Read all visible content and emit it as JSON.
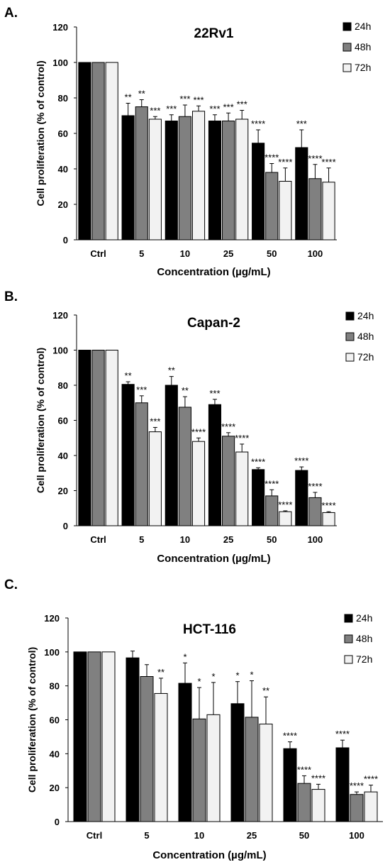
{
  "chart_data": [
    {
      "type": "bar",
      "panel_label": "A.",
      "title": "22Rv1",
      "xlabel": "Concentration (µg/mL)",
      "ylabel": "Cell proliferation (% of control)",
      "ylim": [
        0,
        120
      ],
      "yticks": [
        0,
        20,
        40,
        60,
        80,
        100,
        120
      ],
      "grid": false,
      "legend_position": "top-right",
      "categories": [
        "Ctrl",
        "5",
        "10",
        "25",
        "50",
        "100"
      ],
      "series": [
        {
          "name": "24h",
          "color": "#000000",
          "values": [
            100,
            70,
            67,
            67,
            54.5,
            52
          ],
          "errors": [
            0,
            7,
            3.5,
            3.5,
            7.5,
            10
          ],
          "sig": [
            "",
            "**",
            "***",
            "***",
            "****",
            "***"
          ]
        },
        {
          "name": "48h",
          "color": "#808080",
          "values": [
            100,
            75,
            69.5,
            67,
            38,
            34.5
          ],
          "errors": [
            0,
            4,
            6.5,
            4.5,
            5,
            8
          ],
          "sig": [
            "",
            "**",
            "***",
            "***",
            "****",
            "****"
          ]
        },
        {
          "name": "72h",
          "color": "#f2f2f2",
          "values": [
            100,
            68,
            72.5,
            68,
            33,
            32.5
          ],
          "errors": [
            0,
            1.5,
            3,
            5,
            7.5,
            8
          ],
          "sig": [
            "",
            "***",
            "***",
            "***",
            "****",
            "****"
          ]
        }
      ]
    },
    {
      "type": "bar",
      "panel_label": "B.",
      "title": "Capan-2",
      "xlabel": "Concentration (µg/mL)",
      "ylabel": "Cell proliferation (% of control)",
      "ylim": [
        0,
        120
      ],
      "yticks": [
        0,
        20,
        40,
        60,
        80,
        100,
        120
      ],
      "grid": false,
      "legend_position": "top-right",
      "categories": [
        "Ctrl",
        "5",
        "10",
        "25",
        "50",
        "100"
      ],
      "series": [
        {
          "name": "24h",
          "color": "#000000",
          "values": [
            100,
            80.5,
            80,
            69,
            32,
            31.5
          ],
          "errors": [
            0,
            1.5,
            5,
            3,
            1,
            2
          ],
          "sig": [
            "",
            "**",
            "**",
            "***",
            "****",
            "****"
          ]
        },
        {
          "name": "48h",
          "color": "#808080",
          "values": [
            100,
            70,
            67.5,
            51,
            17,
            16
          ],
          "errors": [
            0,
            4,
            6,
            2,
            3.5,
            3
          ],
          "sig": [
            "",
            "***",
            "**",
            "****",
            "****",
            "****"
          ]
        },
        {
          "name": "72h",
          "color": "#f2f2f2",
          "values": [
            100,
            53.5,
            48,
            42,
            8,
            7.5
          ],
          "errors": [
            0,
            2.5,
            2,
            4.5,
            0.5,
            0.5
          ],
          "sig": [
            "",
            "***",
            "****",
            "****",
            "****",
            "****"
          ]
        }
      ]
    },
    {
      "type": "bar",
      "panel_label": "C.",
      "title": "HCT-116",
      "xlabel": "Concentration (µg/mL)",
      "ylabel": "Cell proliferation (% of control)",
      "ylim": [
        0,
        120
      ],
      "yticks": [
        0,
        20,
        40,
        60,
        80,
        100,
        120
      ],
      "grid": false,
      "legend_position": "top-right",
      "categories": [
        "Ctrl",
        "5",
        "10",
        "25",
        "50",
        "100"
      ],
      "series": [
        {
          "name": "24h",
          "color": "#000000",
          "values": [
            100,
            96.5,
            81.5,
            69.5,
            43,
            43.5
          ],
          "errors": [
            0,
            4,
            12,
            13,
            4,
            4.5
          ],
          "sig": [
            "",
            "",
            "*",
            "*",
            "****",
            "****"
          ]
        },
        {
          "name": "48h",
          "color": "#808080",
          "values": [
            100,
            85.5,
            60.5,
            61.5,
            22.5,
            16
          ],
          "errors": [
            0,
            7,
            18.5,
            21.5,
            4.5,
            1.5
          ],
          "sig": [
            "",
            "",
            "*",
            "*",
            "****",
            "****"
          ]
        },
        {
          "name": "72h",
          "color": "#f2f2f2",
          "values": [
            100,
            75.5,
            63,
            57.5,
            19,
            17.5
          ],
          "errors": [
            0,
            9,
            19,
            16,
            3,
            4
          ],
          "sig": [
            "",
            "**",
            "*",
            "**",
            "****",
            "****"
          ]
        }
      ]
    }
  ]
}
